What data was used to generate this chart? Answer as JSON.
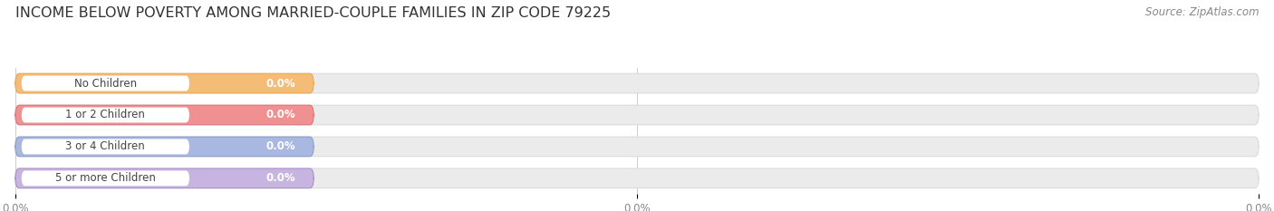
{
  "title": "INCOME BELOW POVERTY AMONG MARRIED-COUPLE FAMILIES IN ZIP CODE 79225",
  "source": "Source: ZipAtlas.com",
  "categories": [
    "No Children",
    "1 or 2 Children",
    "3 or 4 Children",
    "5 or more Children"
  ],
  "values": [
    0.0,
    0.0,
    0.0,
    0.0
  ],
  "bar_colors": [
    "#f5bc78",
    "#f09090",
    "#a8b8e0",
    "#c8b4e0"
  ],
  "bar_edge_colors": [
    "#e8a84a",
    "#d87070",
    "#8898c8",
    "#a888c8"
  ],
  "background_color": "#ffffff",
  "bar_bg_color": "#ebebeb",
  "bar_bg_edge_color": "#d8d8d8",
  "label_bg_color": "#ffffff",
  "xlim_data": [
    0.0,
    100.0
  ],
  "title_fontsize": 11.5,
  "label_fontsize": 8.5,
  "value_fontsize": 8.5,
  "tick_fontsize": 8.5,
  "source_fontsize": 8.5,
  "tick_color": "#888888",
  "label_color": "#444444",
  "title_color": "#333333",
  "source_color": "#888888"
}
